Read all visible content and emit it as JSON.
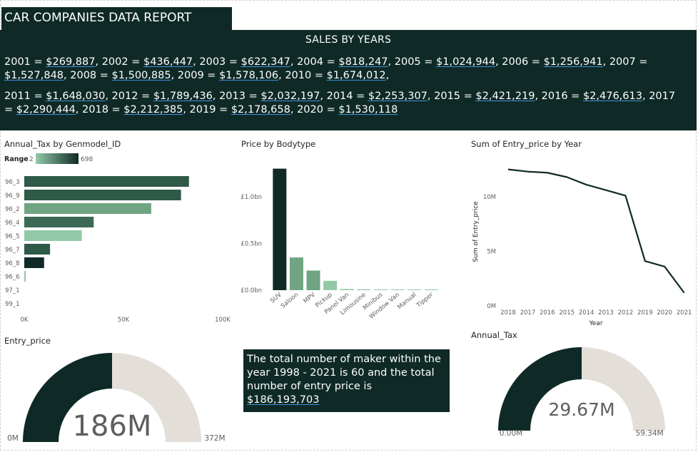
{
  "report": {
    "title": "CAR COMPANIES DATA REPORT"
  },
  "sales": {
    "title": "SALES BY YEARS",
    "line1": [
      {
        "label": "2001 = ",
        "value": "$269,887",
        "sep": ", "
      },
      {
        "label": "2002 = ",
        "value": "$436,447",
        "sep": ", "
      },
      {
        "label": "2003 = ",
        "value": "$622,347",
        "sep": ", "
      },
      {
        "label": "2004 = ",
        "value": "$818,247",
        "sep": ", "
      },
      {
        "label": "2005 = ",
        "value": "$1,024,944",
        "sep": ", "
      },
      {
        "label": "2006 = ",
        "value": "$1,256,941",
        "sep": ", "
      },
      {
        "label": "2007 = ",
        "value": "$1,527,848",
        "sep": ", "
      },
      {
        "label": "2008 = ",
        "value": "$1,500,885",
        "sep": ", "
      },
      {
        "label": "2009 = ",
        "value": "$1,578,106",
        "sep": ", "
      },
      {
        "label": "2010 = ",
        "value": "$1,674,012",
        "sep": ","
      }
    ],
    "line2": [
      {
        "label": "2011 = ",
        "value": "$1,648,030",
        "sep": ", "
      },
      {
        "label": "2012 = ",
        "value": "$1,789,436",
        "sep": ", "
      },
      {
        "label": "2013 = ",
        "value": "$2,032,197",
        "sep": ", "
      },
      {
        "label": "2014 = ",
        "value": "$2,253,307",
        "sep": ", "
      },
      {
        "label": "2015 = ",
        "value": "$2,421,219",
        "sep": ", "
      },
      {
        "label": "2016 = ",
        "value": "$2,476,613",
        "sep": ", "
      },
      {
        "label": "2017 = ",
        "value": "$2,290,444",
        "sep": ", "
      },
      {
        "label": "2018 = ",
        "value": "$2,212,385",
        "sep": ", "
      },
      {
        "label": "2019 = ",
        "value": "$2,178,658",
        "sep": ", "
      },
      {
        "label": "2020 = ",
        "value": "$1,530,118",
        "sep": ""
      }
    ]
  },
  "textbox": {
    "text": "The total number of maker within the year  1998 - 2021 is 60 and the total number of entry price is ",
    "value": "$186,193,703"
  },
  "chart_data": [
    {
      "id": "annual_tax",
      "type": "bar",
      "orientation": "horizontal",
      "title": "Annual_Tax by Genmodel_ID",
      "legend": {
        "label": "Range",
        "min": "2",
        "max": "698",
        "color_min": "#93c9a7",
        "color_max": "#0f2a26"
      },
      "categories": [
        "96_3",
        "96_9",
        "96_2",
        "96_4",
        "96_5",
        "96_7",
        "96_8",
        "96_6",
        "97_1",
        "99_1"
      ],
      "values": [
        83000,
        79000,
        64000,
        35000,
        29000,
        13000,
        10000,
        800,
        0,
        0
      ],
      "colors": [
        "#2e5a48",
        "#2e5a48",
        "#6fa582",
        "#3c6a56",
        "#93c9a7",
        "#2e5a48",
        "#0f2a26",
        "#93c9a7",
        "#93c9a7",
        "#93c9a7"
      ],
      "xlim": [
        0,
        100000
      ],
      "xticks": [
        {
          "v": 0,
          "t": "0K"
        },
        {
          "v": 50000,
          "t": "50K"
        },
        {
          "v": 100000,
          "t": "100K"
        }
      ]
    },
    {
      "id": "price_bodytype",
      "type": "bar",
      "title": "Price by Bodytype",
      "categories": [
        "SUV",
        "Saloon",
        "MPV",
        "Pickup",
        "Panel Van",
        "Limousine",
        "Minibus",
        "Window Van",
        "Manual",
        "Tipper"
      ],
      "values": [
        1.3,
        0.35,
        0.21,
        0.1,
        0.012,
        0.01,
        0.008,
        0.006,
        0.004,
        0.003
      ],
      "colors": [
        "#0f2a26",
        "#6fa582",
        "#6fa582",
        "#93c9a7",
        "#93c9a7",
        "#93c9a7",
        "#93c9a7",
        "#93c9a7",
        "#93c9a7",
        "#93c9a7"
      ],
      "ylim": [
        0,
        1.35
      ],
      "yticks": [
        {
          "v": 0,
          "t": "£0.0bn"
        },
        {
          "v": 0.5,
          "t": "£0.5bn"
        },
        {
          "v": 1.0,
          "t": "£1.0bn"
        }
      ]
    },
    {
      "id": "entry_by_year",
      "type": "line",
      "title": "Sum of Entry_price by Year",
      "xlabel": "Year",
      "ylabel": "Sum of Entry_price",
      "x": [
        "2018",
        "2017",
        "2016",
        "2015",
        "2014",
        "2013",
        "2012",
        "2019",
        "2020",
        "2021"
      ],
      "values": [
        12.5,
        12.3,
        12.2,
        11.8,
        11.1,
        10.6,
        10.1,
        4.1,
        3.6,
        1.2
      ],
      "ylim": [
        0,
        13
      ],
      "yticks": [
        {
          "v": 0,
          "t": "0M"
        },
        {
          "v": 5,
          "t": "5M"
        },
        {
          "v": 10,
          "t": "10M"
        }
      ],
      "color": "#0f2a26"
    },
    {
      "id": "entry_gauge",
      "type": "gauge",
      "title": "Entry_price",
      "value": 186,
      "min": 0,
      "max": 372,
      "value_label": "186M",
      "min_label": "0M",
      "max_label": "372M",
      "fill_color": "#0f2a26",
      "track_color": "#e3ded8"
    },
    {
      "id": "tax_gauge",
      "type": "gauge",
      "title": "Annual_Tax",
      "value": 29.67,
      "min": 0,
      "max": 59.34,
      "value_label": "29.67M",
      "min_label": "0.00M",
      "max_label": "59.34M",
      "fill_color": "#0f2a26",
      "track_color": "#e3ded8"
    }
  ]
}
